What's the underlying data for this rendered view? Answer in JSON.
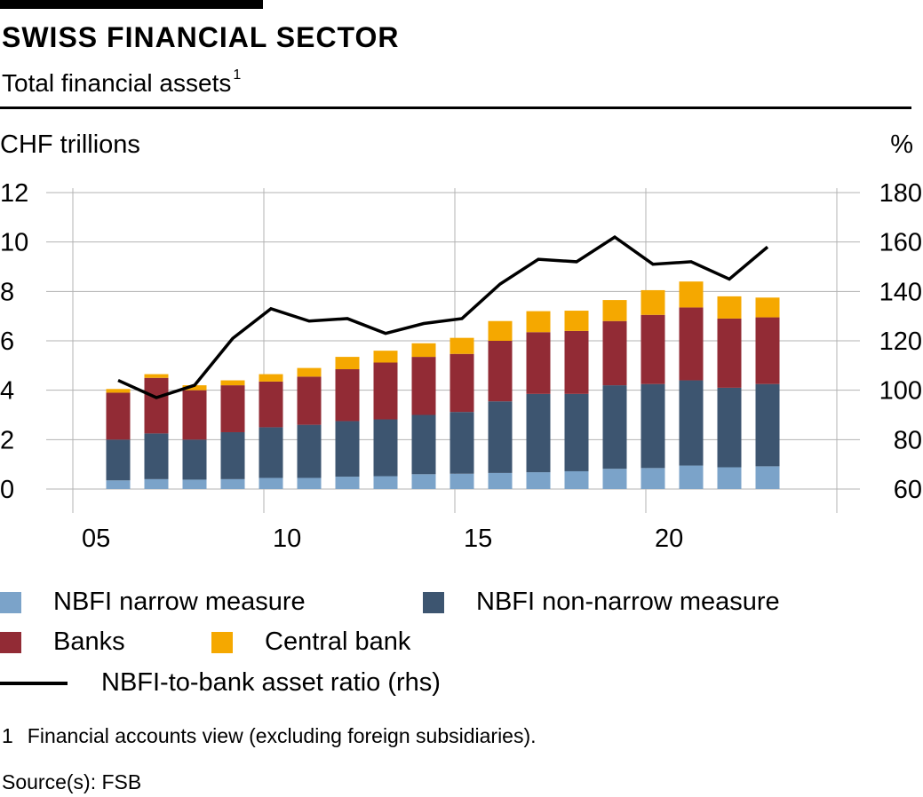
{
  "header": {
    "title": "SWISS FINANCIAL SECTOR",
    "subtitle": "Total financial assets",
    "subtitle_note": "1"
  },
  "chart_data": {
    "type": "bar",
    "stacked": true,
    "y_left_label": "CHF trillions",
    "y_right_label": "%",
    "ylim_left": [
      0,
      12
    ],
    "ylim_right": [
      60,
      180
    ],
    "y_left_ticks": [
      "0",
      "2",
      "4",
      "6",
      "8",
      "10",
      "12"
    ],
    "y_right_ticks": [
      "60",
      "80",
      "100",
      "120",
      "140",
      "160",
      "180"
    ],
    "x_ticks": [
      "05",
      "10",
      "15",
      "20"
    ],
    "grid": true,
    "categories": [
      2006,
      2007,
      2008,
      2009,
      2010,
      2011,
      2012,
      2013,
      2014,
      2015,
      2016,
      2017,
      2018,
      2019,
      2020,
      2021,
      2022,
      2023
    ],
    "series": [
      {
        "name": "NBFI narrow measure",
        "color": "#7ba3c9",
        "values": [
          0.35,
          0.4,
          0.38,
          0.4,
          0.45,
          0.45,
          0.5,
          0.52,
          0.6,
          0.62,
          0.65,
          0.68,
          0.72,
          0.82,
          0.85,
          0.95,
          0.88,
          0.92
        ]
      },
      {
        "name": "NBFI non-narrow measure",
        "color": "#3d5570",
        "values": [
          1.65,
          1.85,
          1.62,
          1.9,
          2.05,
          2.15,
          2.25,
          2.3,
          2.4,
          2.5,
          2.9,
          3.17,
          3.13,
          3.38,
          3.4,
          3.45,
          3.22,
          3.33
        ]
      },
      {
        "name": "Banks",
        "color": "#922b35",
        "values": [
          1.9,
          2.25,
          2.0,
          1.9,
          1.85,
          1.95,
          2.1,
          2.3,
          2.35,
          2.35,
          2.45,
          2.5,
          2.55,
          2.6,
          2.8,
          2.95,
          2.8,
          2.7
        ]
      },
      {
        "name": "Central bank",
        "color": "#f5a800",
        "values": [
          0.15,
          0.15,
          0.2,
          0.2,
          0.3,
          0.35,
          0.5,
          0.48,
          0.55,
          0.65,
          0.8,
          0.85,
          0.82,
          0.85,
          1.0,
          1.05,
          0.9,
          0.8
        ]
      }
    ],
    "line_series": {
      "name": "NBFI-to-bank asset ratio (rhs)",
      "color": "#000000",
      "axis": "right",
      "values": [
        104,
        97,
        102,
        121,
        133,
        128,
        129,
        123,
        127,
        129,
        143,
        153,
        152,
        162,
        151,
        152,
        145,
        158
      ]
    }
  },
  "legend": {
    "items": [
      {
        "label": "NBFI narrow measure",
        "color": "#7ba3c9"
      },
      {
        "label": "NBFI non-narrow measure",
        "color": "#3d5570"
      },
      {
        "label": "Banks",
        "color": "#922b35"
      },
      {
        "label": "Central bank",
        "color": "#f5a800"
      }
    ],
    "line_label": "NBFI-to-bank asset ratio (rhs)"
  },
  "notes": {
    "footnote_number": "1",
    "footnote_text": "Financial accounts view (excluding foreign subsidiaries).",
    "source": "Source(s): FSB"
  }
}
